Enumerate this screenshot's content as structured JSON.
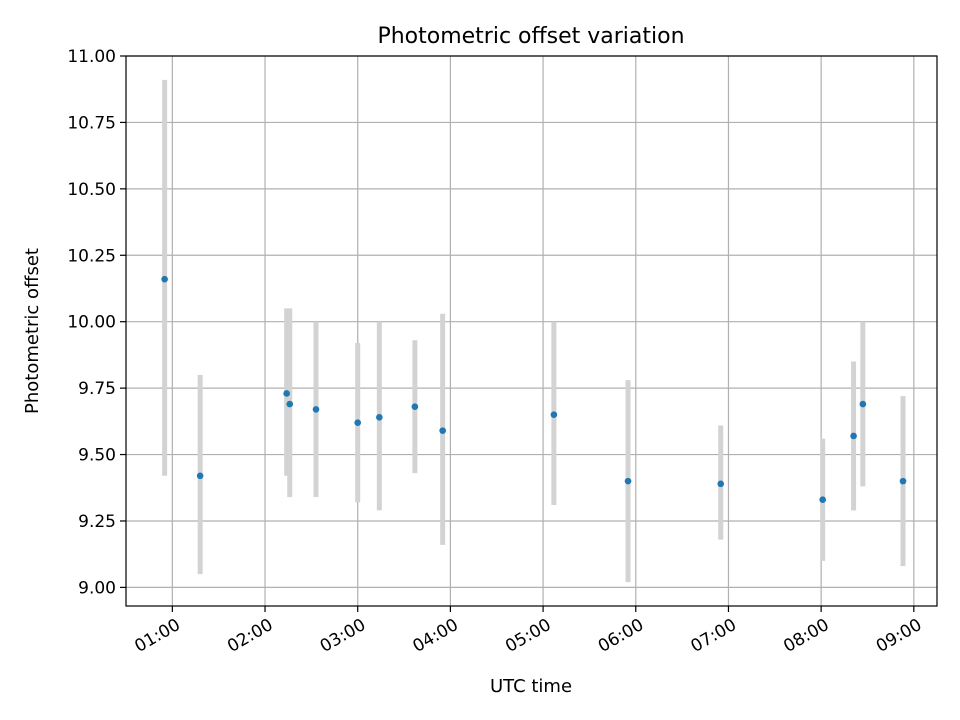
{
  "chart_data": {
    "type": "scatter",
    "title": "Photometric offset variation",
    "xlabel": "UTC time",
    "ylabel": "Photometric offset",
    "xlim": [
      "00:30",
      "09:15"
    ],
    "ylim": [
      8.93,
      11.0
    ],
    "x_ticks": [
      "01:00",
      "02:00",
      "03:00",
      "04:00",
      "05:00",
      "06:00",
      "07:00",
      "08:00",
      "09:00"
    ],
    "y_ticks": [
      "9.00",
      "9.25",
      "9.50",
      "9.75",
      "10.00",
      "10.25",
      "10.50",
      "10.75",
      "11.00"
    ],
    "grid": true,
    "series": [
      {
        "x": [
          "00:55",
          "01:18",
          "02:14",
          "02:16",
          "02:33",
          "03:00",
          "03:14",
          "03:37",
          "03:55",
          "05:07",
          "05:55",
          "06:55",
          "08:01",
          "08:21",
          "08:27",
          "08:53"
        ],
        "y": [
          10.16,
          9.42,
          9.73,
          9.69,
          9.67,
          9.62,
          9.64,
          9.68,
          9.59,
          9.65,
          9.4,
          9.39,
          9.33,
          9.57,
          9.69,
          9.4
        ],
        "yerr_low": [
          9.42,
          9.05,
          9.42,
          9.34,
          9.34,
          9.32,
          9.29,
          9.43,
          9.16,
          9.31,
          9.02,
          9.18,
          9.1,
          9.29,
          9.38,
          9.08
        ],
        "yerr_high": [
          10.91,
          9.8,
          10.05,
          10.05,
          10.0,
          9.92,
          10.0,
          9.93,
          10.03,
          10.0,
          9.78,
          9.61,
          9.56,
          9.85,
          10.0,
          9.72
        ]
      }
    ],
    "colors": {
      "point": "#1f77b4",
      "errorbar": "#d3d3d3",
      "grid": "#b0b0b0",
      "axes": "#000000"
    }
  }
}
